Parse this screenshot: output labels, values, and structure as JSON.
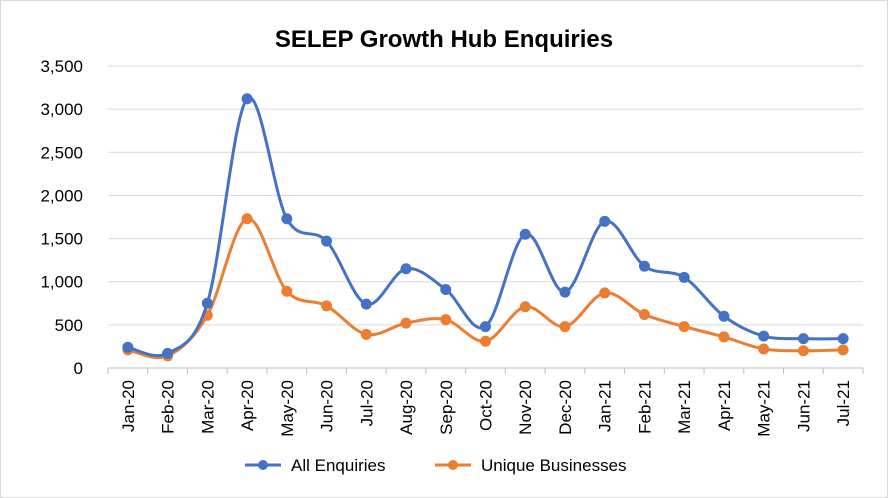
{
  "chart_data": {
    "type": "line",
    "title": "SELEP Growth Hub Enquiries",
    "xlabel": "",
    "ylabel": "",
    "ylim": [
      0,
      3500
    ],
    "y_ticks": [
      "0",
      "500",
      "1,000",
      "1,500",
      "2,000",
      "2,500",
      "3,000",
      "3,500"
    ],
    "y_tick_values": [
      0,
      500,
      1000,
      1500,
      2000,
      2500,
      3000,
      3500
    ],
    "grid": "horizontal",
    "legend_position": "bottom",
    "categories": [
      "Jan-20",
      "Feb-20",
      "Mar-20",
      "Apr-20",
      "May-20",
      "Jun-20",
      "Jul-20",
      "Aug-20",
      "Sep-20",
      "Oct-20",
      "Nov-20",
      "Dec-20",
      "Jan-21",
      "Feb-21",
      "Mar-21",
      "Apr-21",
      "May-21",
      "Jun-21",
      "Jul-21"
    ],
    "series": [
      {
        "name": "All Enquiries",
        "color": "#4472c4",
        "values": [
          240,
          170,
          750,
          3120,
          1730,
          1470,
          740,
          1150,
          910,
          480,
          1550,
          880,
          1700,
          1180,
          1050,
          600,
          370,
          340,
          340
        ]
      },
      {
        "name": "Unique Businesses",
        "color": "#ed7d31",
        "values": [
          210,
          140,
          610,
          1730,
          890,
          720,
          390,
          520,
          560,
          310,
          710,
          480,
          870,
          620,
          480,
          360,
          220,
          200,
          210
        ]
      }
    ]
  }
}
